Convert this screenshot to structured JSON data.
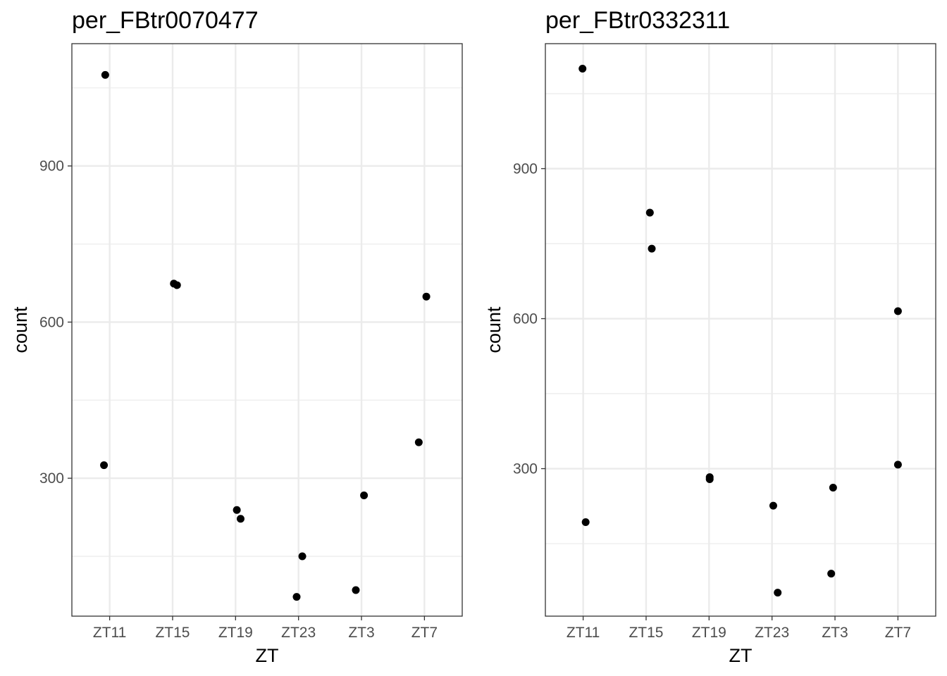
{
  "chart_data": [
    {
      "type": "scatter",
      "title": "per_FBtr0070477",
      "xlabel": "ZT",
      "ylabel": "count",
      "categories": [
        "ZT11",
        "ZT15",
        "ZT19",
        "ZT23",
        "ZT3",
        "ZT7"
      ],
      "yticks": [
        300,
        600,
        900
      ],
      "ylim": [
        35,
        1135
      ],
      "grid": true,
      "points": [
        {
          "x": "ZT11",
          "jitter": -0.07,
          "y": 1075
        },
        {
          "x": "ZT11",
          "jitter": -0.09,
          "y": 325
        },
        {
          "x": "ZT15",
          "jitter": 0.02,
          "y": 674
        },
        {
          "x": "ZT15",
          "jitter": 0.07,
          "y": 671
        },
        {
          "x": "ZT19",
          "jitter": 0.02,
          "y": 239
        },
        {
          "x": "ZT19",
          "jitter": 0.08,
          "y": 222
        },
        {
          "x": "ZT23",
          "jitter": 0.06,
          "y": 150
        },
        {
          "x": "ZT23",
          "jitter": -0.03,
          "y": 72
        },
        {
          "x": "ZT3",
          "jitter": 0.04,
          "y": 267
        },
        {
          "x": "ZT3",
          "jitter": -0.09,
          "y": 85
        },
        {
          "x": "ZT7",
          "jitter": 0.03,
          "y": 649
        },
        {
          "x": "ZT7",
          "jitter": -0.09,
          "y": 369
        }
      ]
    },
    {
      "type": "scatter",
      "title": "per_FBtr0332311",
      "xlabel": "ZT",
      "ylabel": "count",
      "categories": [
        "ZT11",
        "ZT15",
        "ZT19",
        "ZT23",
        "ZT3",
        "ZT7"
      ],
      "yticks": [
        300,
        600,
        900
      ],
      "ylim": [
        5,
        1150
      ],
      "grid": true,
      "points": [
        {
          "x": "ZT11",
          "jitter": -0.01,
          "y": 1100
        },
        {
          "x": "ZT11",
          "jitter": 0.04,
          "y": 193
        },
        {
          "x": "ZT15",
          "jitter": 0.06,
          "y": 812
        },
        {
          "x": "ZT15",
          "jitter": 0.09,
          "y": 740
        },
        {
          "x": "ZT19",
          "jitter": 0.01,
          "y": 283
        },
        {
          "x": "ZT19",
          "jitter": 0.01,
          "y": 279
        },
        {
          "x": "ZT23",
          "jitter": 0.02,
          "y": 226
        },
        {
          "x": "ZT23",
          "jitter": 0.09,
          "y": 52
        },
        {
          "x": "ZT3",
          "jitter": -0.03,
          "y": 262
        },
        {
          "x": "ZT3",
          "jitter": -0.06,
          "y": 90
        },
        {
          "x": "ZT7",
          "jitter": 0.0,
          "y": 615
        },
        {
          "x": "ZT7",
          "jitter": 0.0,
          "y": 308
        }
      ]
    }
  ]
}
